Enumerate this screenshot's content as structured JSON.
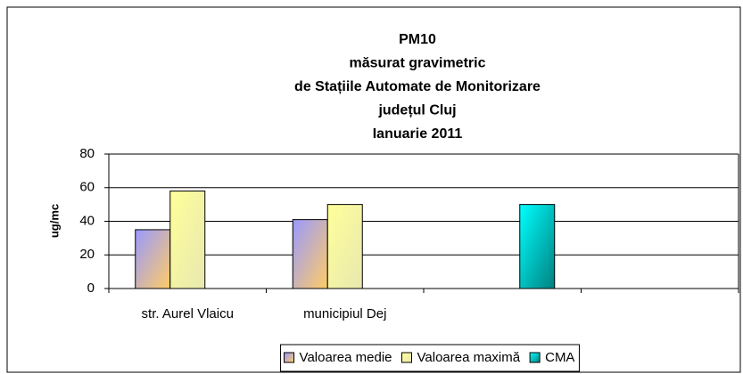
{
  "chart_data": {
    "type": "bar",
    "title": [
      "PM10",
      "măsurat gravimetric",
      "de Stațiile Automate de Monitorizare",
      "județul Cluj",
      "Ianuarie 2011"
    ],
    "y_label": "ug/mc",
    "categories": [
      "str. Aurel Vlaicu",
      "municipiul Dej",
      null,
      null
    ],
    "series": [
      {
        "name": "Valoarea medie",
        "color": "#9999ff",
        "color2": "#ffcc66",
        "values": [
          35,
          41,
          null,
          null
        ]
      },
      {
        "name": "Valoarea maximă",
        "color": "#ffff99",
        "color2": "#e8e8b0",
        "values": [
          58,
          50,
          null,
          null
        ]
      },
      {
        "name": "CMA",
        "color": "#00ffff",
        "color2": "#008080",
        "values": [
          null,
          null,
          50,
          null
        ]
      }
    ],
    "ylim": [
      0,
      80
    ],
    "yticks": [
      0,
      20,
      40,
      60,
      80
    ],
    "grid": true,
    "legend": "bottom"
  }
}
